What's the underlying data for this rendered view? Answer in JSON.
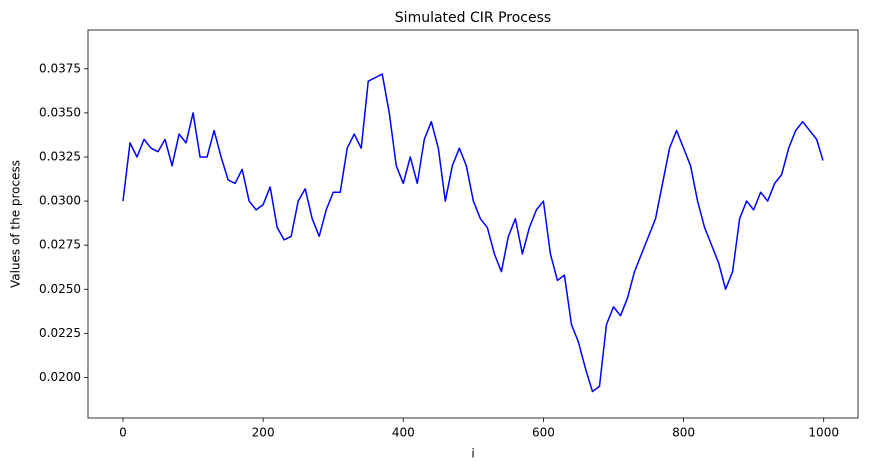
{
  "chart_data": {
    "type": "line",
    "title": "Simulated CIR Process",
    "x_label": "i",
    "y_label": "Values of the process",
    "x": [
      0,
      10,
      20,
      30,
      40,
      50,
      60,
      70,
      80,
      90,
      100,
      110,
      120,
      130,
      140,
      150,
      160,
      170,
      180,
      190,
      200,
      210,
      220,
      230,
      240,
      250,
      260,
      270,
      280,
      290,
      300,
      310,
      320,
      330,
      340,
      350,
      360,
      370,
      380,
      390,
      400,
      410,
      420,
      430,
      440,
      450,
      460,
      470,
      480,
      490,
      500,
      510,
      520,
      530,
      540,
      550,
      560,
      570,
      580,
      590,
      600,
      610,
      620,
      630,
      640,
      650,
      660,
      670,
      680,
      690,
      700,
      710,
      720,
      730,
      740,
      750,
      760,
      770,
      780,
      790,
      800,
      810,
      820,
      830,
      840,
      850,
      860,
      870,
      880,
      890,
      900,
      910,
      920,
      930,
      940,
      950,
      960,
      970,
      980,
      990,
      999
    ],
    "values": [
      0.03,
      0.0333,
      0.0325,
      0.0335,
      0.033,
      0.0328,
      0.0335,
      0.032,
      0.0338,
      0.0333,
      0.035,
      0.0325,
      0.0325,
      0.034,
      0.0325,
      0.0312,
      0.031,
      0.0318,
      0.03,
      0.0295,
      0.0298,
      0.0308,
      0.0285,
      0.0278,
      0.028,
      0.03,
      0.0307,
      0.029,
      0.028,
      0.0295,
      0.0305,
      0.0305,
      0.033,
      0.0338,
      0.033,
      0.0368,
      0.037,
      0.0372,
      0.035,
      0.032,
      0.031,
      0.0325,
      0.031,
      0.0335,
      0.0345,
      0.033,
      0.03,
      0.032,
      0.033,
      0.032,
      0.03,
      0.029,
      0.0285,
      0.027,
      0.026,
      0.028,
      0.029,
      0.027,
      0.0285,
      0.0295,
      0.03,
      0.027,
      0.0255,
      0.0258,
      0.023,
      0.022,
      0.0205,
      0.0192,
      0.0195,
      0.023,
      0.024,
      0.0235,
      0.0245,
      0.026,
      0.027,
      0.028,
      0.029,
      0.031,
      0.033,
      0.034,
      0.033,
      0.032,
      0.03,
      0.0285,
      0.0275,
      0.0265,
      0.025,
      0.026,
      0.029,
      0.03,
      0.0295,
      0.0305,
      0.03,
      0.031,
      0.0315,
      0.033,
      0.034,
      0.0345,
      0.034,
      0.0335,
      0.0323
    ],
    "color": "#0000ff",
    "xlim": [
      -49.95,
      1048.95
    ],
    "xticks": [
      0,
      200,
      400,
      600,
      800,
      1000
    ],
    "ylim": [
      0.0177,
      0.0397
    ],
    "yticks": [
      {
        "value": 0.02,
        "label": "0.0200"
      },
      {
        "value": 0.0225,
        "label": "0.0225"
      },
      {
        "value": 0.025,
        "label": "0.0250"
      },
      {
        "value": 0.0275,
        "label": "0.0275"
      },
      {
        "value": 0.03,
        "label": "0.0300"
      },
      {
        "value": 0.0325,
        "label": "0.0325"
      },
      {
        "value": 0.035,
        "label": "0.0350"
      },
      {
        "value": 0.0375,
        "label": "0.0375"
      }
    ],
    "grid": false
  }
}
